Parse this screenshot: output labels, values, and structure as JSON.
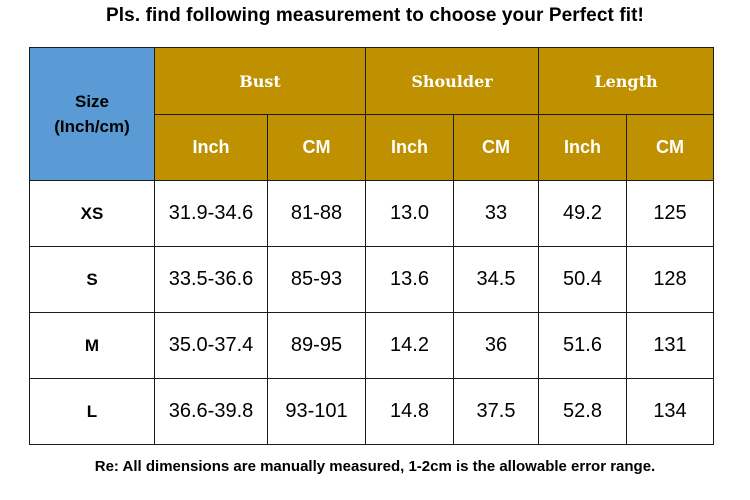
{
  "title": "Pls. find following measurement to choose your Perfect fit!",
  "table": {
    "size_header_line1": "Size",
    "size_header_line2": "(Inch/cm)",
    "groups": [
      "Bust",
      "Shoulder",
      "Length"
    ],
    "units": [
      "Inch",
      "CM",
      "Inch",
      "CM",
      "Inch",
      "CM"
    ],
    "rows": [
      {
        "size": "XS",
        "values": [
          "31.9-34.6",
          "81-88",
          "13.0",
          "33",
          "49.2",
          "125"
        ]
      },
      {
        "size": "S",
        "values": [
          "33.5-36.6",
          "85-93",
          "13.6",
          "34.5",
          "50.4",
          "128"
        ]
      },
      {
        "size": "M",
        "values": [
          "35.0-37.4",
          "89-95",
          "14.2",
          "36",
          "51.6",
          "131"
        ]
      },
      {
        "size": "L",
        "values": [
          "36.6-39.8",
          "93-101",
          "14.8",
          "37.5",
          "52.8",
          "134"
        ]
      }
    ]
  },
  "note": "Re: All dimensions are manually measured, 1-2cm is the allowable error range.",
  "colors": {
    "size_header_bg": "#5b9bd5",
    "group_header_bg": "#bf9000",
    "header_text": "#ffffff"
  }
}
